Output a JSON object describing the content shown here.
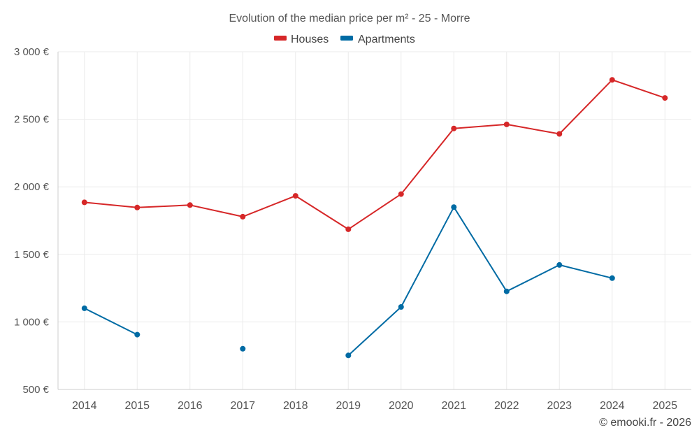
{
  "chart_data": {
    "type": "line",
    "title": "Evolution of the median price per m² - 25 - Morre",
    "categories": [
      "2014",
      "2015",
      "2016",
      "2017",
      "2018",
      "2019",
      "2020",
      "2021",
      "2022",
      "2023",
      "2024",
      "2025"
    ],
    "series": [
      {
        "name": "Houses",
        "color": "#d62728",
        "values": [
          1885,
          1847,
          1865,
          1779,
          1933,
          1686,
          1946,
          2432,
          2462,
          2392,
          2792,
          2658
        ]
      },
      {
        "name": "Apartments",
        "color": "#006ba4",
        "values": [
          1101,
          906,
          null,
          801,
          null,
          752,
          1111,
          1850,
          1226,
          1422,
          1324,
          null
        ]
      }
    ],
    "ylim": [
      500,
      3000
    ],
    "yticks": [
      500,
      1000,
      1500,
      2000,
      2500,
      3000
    ],
    "ytick_labels": [
      "500 €",
      "1 000 €",
      "1 500 €",
      "2 000 €",
      "2 500 €",
      "3 000 €"
    ],
    "grid": true,
    "legend_position": "top-center",
    "xlabel": "",
    "ylabel": ""
  },
  "credit": "© emooki.fr - 2026"
}
